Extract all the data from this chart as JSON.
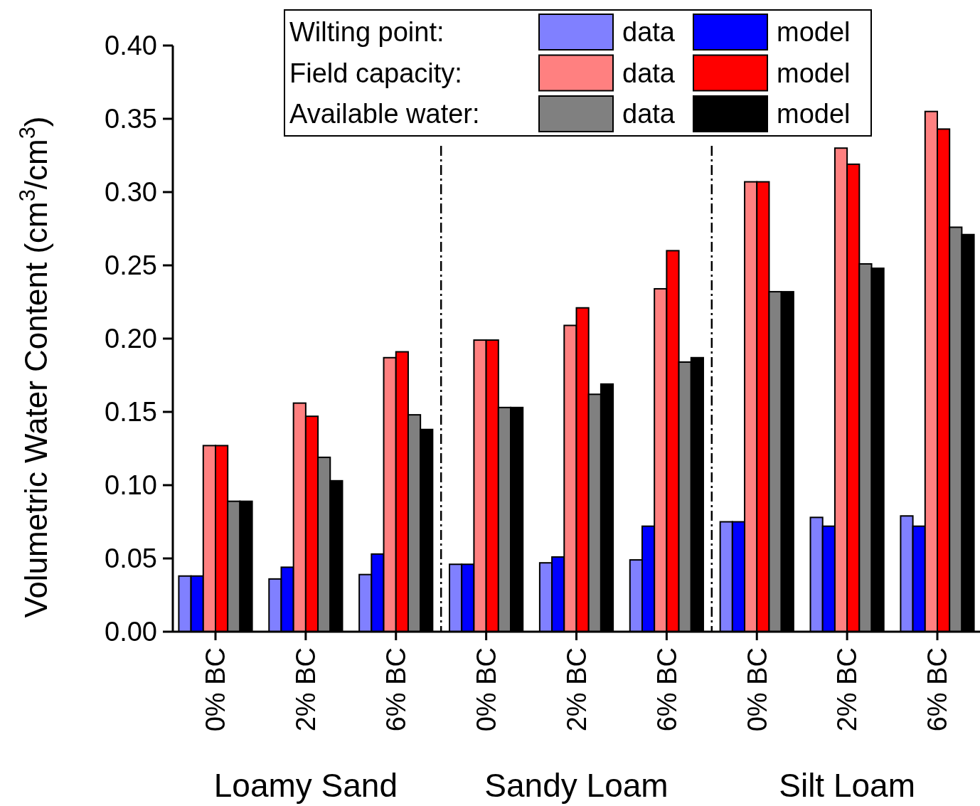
{
  "chart_data": {
    "type": "bar",
    "ylabel": "Volumetric Water Content (cm$^{3}$/cm$^{3}$)",
    "categories": [
      "0% BC",
      "2% BC",
      "6% BC",
      "0% BC",
      "2% BC",
      "6% BC",
      "0% BC",
      "2% BC",
      "6% BC"
    ],
    "series": [
      {
        "name": "data",
        "color": "#8080ff",
        "values": [
          0.038,
          0.036,
          0.039,
          0.046,
          0.047,
          0.049,
          0.075,
          0.078,
          0.079
        ]
      },
      {
        "name": "model",
        "color": "#0000ff",
        "values": [
          0.038,
          0.044,
          0.053,
          0.046,
          0.051,
          0.072,
          0.075,
          0.072,
          0.072
        ]
      },
      {
        "name": "data",
        "color": "#ff8080",
        "values": [
          0.127,
          0.156,
          0.187,
          0.199,
          0.209,
          0.234,
          0.307,
          0.33,
          0.355
        ]
      },
      {
        "name": "model",
        "color": "#ff0000",
        "values": [
          0.127,
          0.147,
          0.191,
          0.199,
          0.221,
          0.26,
          0.307,
          0.319,
          0.343
        ]
      },
      {
        "name": "data",
        "color": "#808080",
        "values": [
          0.089,
          0.119,
          0.148,
          0.153,
          0.162,
          0.184,
          0.232,
          0.251,
          0.276
        ]
      },
      {
        "name": "model",
        "color": "#000000",
        "values": [
          0.089,
          0.103,
          0.138,
          0.153,
          0.169,
          0.187,
          0.232,
          0.248,
          0.271
        ]
      }
    ],
    "ylim": [
      0,
      0.4
    ],
    "yticks": [
      {
        "value": 0,
        "label": "0.00"
      },
      {
        "value": 0.05,
        "label": "0.05"
      },
      {
        "value": 0.1,
        "label": "0.10"
      },
      {
        "value": 0.15,
        "label": "0.15"
      },
      {
        "value": 0.2,
        "label": "0.20"
      },
      {
        "value": 0.25,
        "label": "0.25"
      },
      {
        "value": 0.3,
        "label": "0.30"
      },
      {
        "value": 0.35,
        "label": "0.35"
      },
      {
        "value": 0.4,
        "label": "0.40"
      }
    ],
    "legend": "top",
    "grid": false,
    "annotations": [
      "Wilting point:",
      "Field capacity:",
      "Available water:",
      "Loamy Sand",
      "Sandy Loam",
      "Silt Loam"
    ]
  }
}
